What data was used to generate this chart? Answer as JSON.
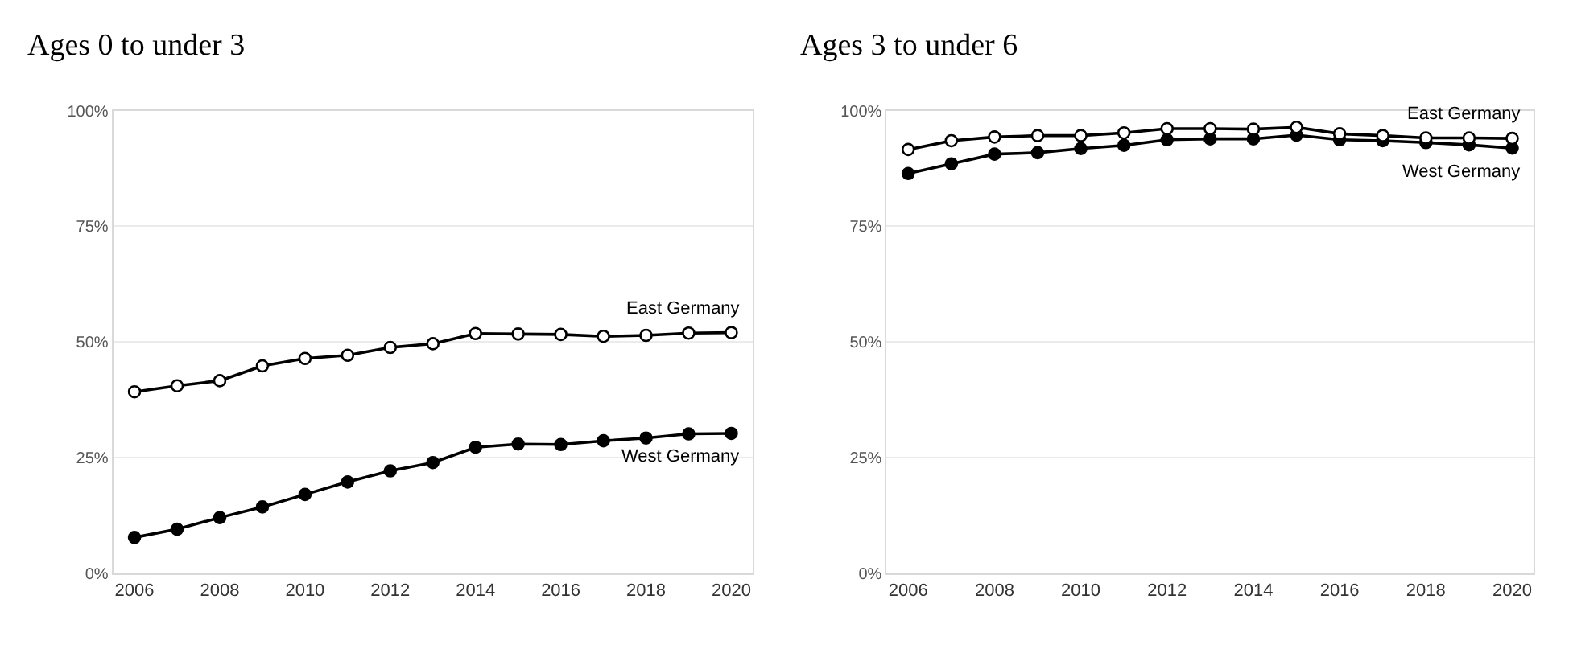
{
  "chart_data": [
    {
      "type": "line",
      "title": "Ages 0 to under 3",
      "x": [
        2006,
        2007,
        2008,
        2009,
        2010,
        2011,
        2012,
        2013,
        2014,
        2015,
        2016,
        2017,
        2018,
        2019,
        2020
      ],
      "xlim": [
        2005.5,
        2020.5
      ],
      "xticks": [
        2006,
        2008,
        2010,
        2012,
        2014,
        2016,
        2018,
        2020
      ],
      "ylim": [
        0,
        100
      ],
      "yticks": [
        {
          "value": 0,
          "label": "0%"
        },
        {
          "value": 25,
          "label": "25%"
        },
        {
          "value": 50,
          "label": "50%"
        },
        {
          "value": 75,
          "label": "75%"
        },
        {
          "value": 100,
          "label": "100%"
        }
      ],
      "grid": "y",
      "legend": false,
      "marker": "circle",
      "line_style": "solid",
      "series": [
        {
          "name": "East Germany",
          "color": "#ffffff",
          "values": [
            39.2,
            40.5,
            41.6,
            44.8,
            46.4,
            47.1,
            48.8,
            49.6,
            51.8,
            51.7,
            51.6,
            51.2,
            51.4,
            51.9,
            52.0
          ]
        },
        {
          "name": "West Germany",
          "color": "#000000",
          "values": [
            7.7,
            9.5,
            12.0,
            14.3,
            17.0,
            19.7,
            22.1,
            23.9,
            27.2,
            27.9,
            27.8,
            28.6,
            29.2,
            30.1,
            30.2
          ]
        }
      ]
    },
    {
      "type": "line",
      "title": "Ages 3 to under 6",
      "x": [
        2006,
        2007,
        2008,
        2009,
        2010,
        2011,
        2012,
        2013,
        2014,
        2015,
        2016,
        2017,
        2018,
        2019,
        2020
      ],
      "xlim": [
        2005.5,
        2020.5
      ],
      "xticks": [
        2006,
        2008,
        2010,
        2012,
        2014,
        2016,
        2018,
        2020
      ],
      "ylim": [
        0,
        100
      ],
      "yticks": [
        {
          "value": 0,
          "label": "0%"
        },
        {
          "value": 25,
          "label": "25%"
        },
        {
          "value": 50,
          "label": "50%"
        },
        {
          "value": 75,
          "label": "75%"
        },
        {
          "value": 100,
          "label": "100%"
        }
      ],
      "grid": "y",
      "legend": false,
      "marker": "circle",
      "line_style": "solid",
      "series": [
        {
          "name": "East Germany",
          "color": "#ffffff",
          "values": [
            91.6,
            93.5,
            94.3,
            94.6,
            94.6,
            95.2,
            96.1,
            96.1,
            96.0,
            96.4,
            95.0,
            94.6,
            94.1,
            94.1,
            94.0
          ]
        },
        {
          "name": "West Germany",
          "color": "#000000",
          "values": [
            86.4,
            88.5,
            90.6,
            90.9,
            91.8,
            92.5,
            93.7,
            93.9,
            93.9,
            94.7,
            93.7,
            93.5,
            93.1,
            92.6,
            91.9
          ]
        }
      ]
    }
  ]
}
